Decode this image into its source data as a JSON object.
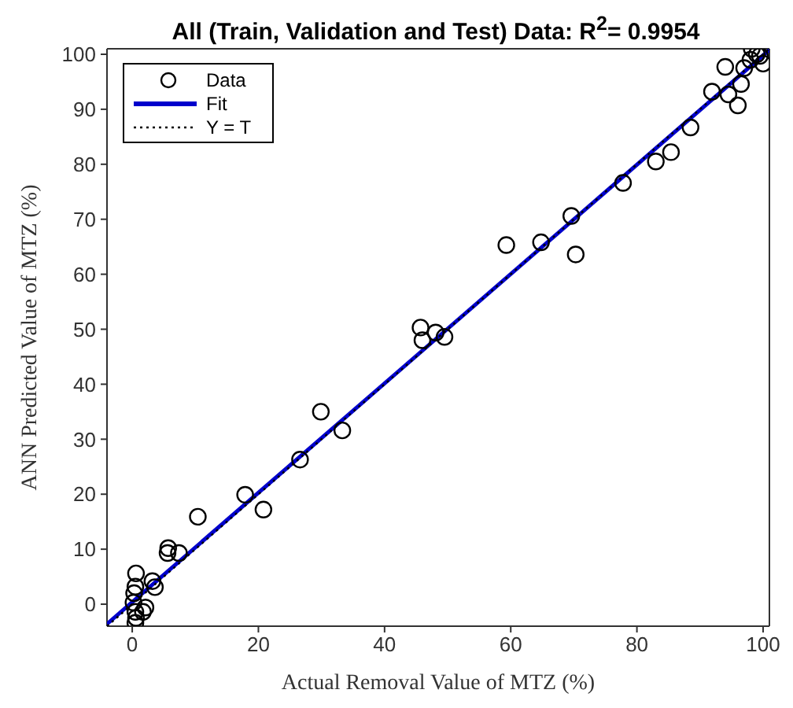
{
  "chart_data": {
    "type": "scatter",
    "title": "All (Train, Validation and Test) Data: R$^{2}$= 0.9954",
    "xlabel": "Actual Removal Value of MTZ (%)",
    "ylabel": "ANN Predicted Value of MTZ (%)",
    "xlim": [
      -4,
      101
    ],
    "ylim": [
      -4,
      101
    ],
    "xticks": [
      0,
      20,
      40,
      60,
      80,
      100
    ],
    "yticks": [
      0,
      10,
      20,
      30,
      40,
      50,
      60,
      70,
      80,
      90,
      100
    ],
    "grid": false,
    "legend": "top left",
    "series": [
      {
        "name": "Data",
        "type": "scatter",
        "marker": "circle",
        "color": "#000000",
        "x": [
          98.2,
          99,
          99.5,
          98,
          100,
          97,
          94,
          96.5,
          91.9,
          94.5,
          96,
          88.5,
          85.4,
          83,
          77.8,
          69.6,
          70.3,
          59.3,
          64.8,
          45.7,
          46,
          48.1,
          49.5,
          29.9,
          33.3,
          26.6,
          17.9,
          20.8,
          10.4,
          5.7,
          5.6,
          7.4,
          3.2,
          3.6,
          0.6,
          0.5,
          0.3,
          0.2,
          2.1,
          0.5,
          0.6,
          0.5,
          1.7
        ],
        "values": [
          101,
          100,
          99.7,
          99,
          98.3,
          97.5,
          97.7,
          94.6,
          93.2,
          92.7,
          90.7,
          86.7,
          82.2,
          80.5,
          76.6,
          70.6,
          63.6,
          65.3,
          65.8,
          50.3,
          48,
          49.4,
          48.6,
          35,
          31.6,
          26.3,
          19.9,
          17.2,
          15.9,
          10.2,
          9.3,
          9.3,
          4.2,
          3.1,
          5.6,
          3.2,
          2,
          0.3,
          -0.6,
          -1.4,
          -2.5,
          -3.4,
          -1.4
        ]
      },
      {
        "name": "Fit",
        "type": "line",
        "color": "#0000cc",
        "x": [
          -4,
          101
        ],
        "values": [
          -3.6,
          100.8
        ]
      },
      {
        "name": "Y = T",
        "type": "line",
        "line_style": "dotted",
        "color": "#000000",
        "x": [
          -4,
          101
        ],
        "values": [
          -4,
          101
        ]
      }
    ]
  }
}
